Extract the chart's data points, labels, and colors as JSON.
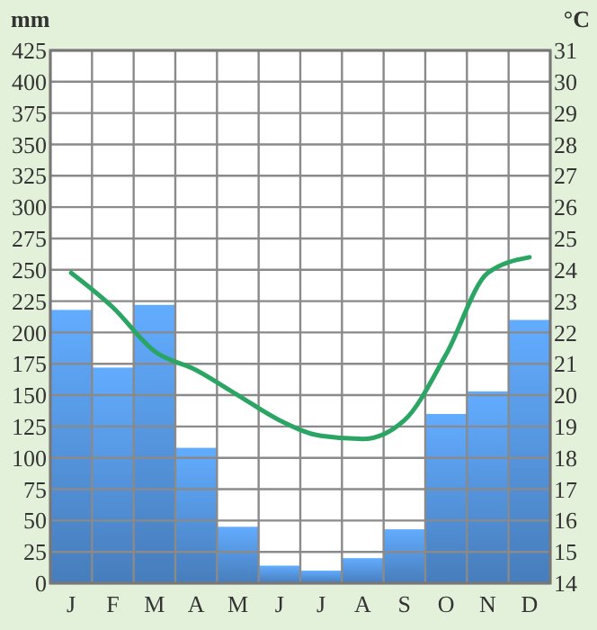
{
  "chart_data": {
    "type": "bar",
    "ylabel": "mm",
    "y2label": "°C",
    "categories": [
      "J",
      "F",
      "M",
      "A",
      "M",
      "J",
      "J",
      "A",
      "S",
      "O",
      "N",
      "D"
    ],
    "series": [
      {
        "color": "#4f8bd0",
        "values": [
          218,
          172,
          222,
          108,
          45,
          14,
          10,
          20,
          43,
          135,
          153,
          210
        ]
      },
      {
        "type": "line",
        "axis": "y2",
        "color": "#2aa564",
        "values": [
          23.9,
          22.8,
          21.4,
          20.8,
          20.0,
          19.2,
          18.7,
          18.6,
          19.2,
          21.3,
          23.9,
          24.4
        ]
      }
    ],
    "ylim": [
      0,
      425
    ],
    "yticks": [
      0,
      25,
      50,
      75,
      100,
      125,
      150,
      175,
      200,
      225,
      250,
      275,
      300,
      325,
      350,
      375,
      400,
      425
    ],
    "y2lim": [
      14,
      31
    ],
    "y2ticks": [
      14,
      15,
      16,
      17,
      18,
      19,
      20,
      21,
      22,
      23,
      24,
      25,
      26,
      27,
      28,
      29,
      30,
      31
    ],
    "grid": true,
    "marker": "none",
    "line_style": "solid"
  }
}
